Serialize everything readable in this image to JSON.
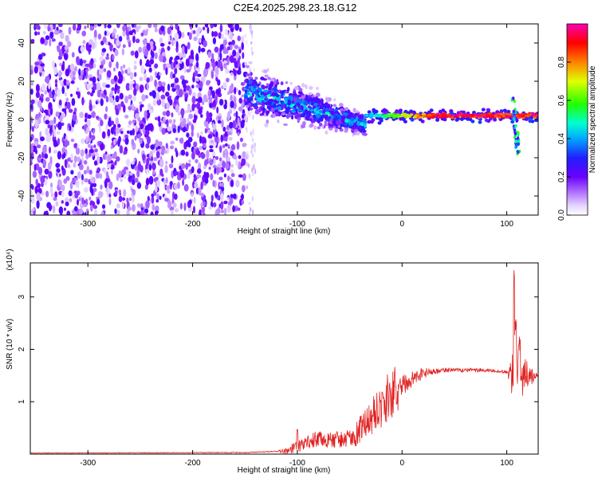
{
  "title": "C2E4.2025.298.23.18.G12",
  "chart_data": [
    {
      "type": "heatmap",
      "title": "C2E4.2025.298.23.18.G12",
      "xlabel": "Height of straight line (km)",
      "ylabel": "Frequency (Hz)",
      "xlim": [
        -355,
        130
      ],
      "ylim": [
        -50,
        50
      ],
      "x_ticks": [
        -300,
        -200,
        -100,
        0,
        100
      ],
      "x_tick_labels": [
        "-300",
        "-200",
        "-100",
        "0",
        "100"
      ],
      "y_ticks": [
        -40,
        -20,
        0,
        20,
        40
      ],
      "y_tick_labels": [
        "-40",
        "-20",
        "0",
        "20",
        "40"
      ],
      "colorbar": {
        "label": "Normalized spectral amplitude",
        "range": [
          0,
          1
        ],
        "ticks": [
          0.0,
          0.2,
          0.4,
          0.6,
          0.8
        ],
        "tick_labels": [
          "0.0",
          "0.2",
          "0.4",
          "0.6",
          "0.8"
        ],
        "colors": [
          "#ffffff",
          "#c8a8ff",
          "#8000ff",
          "#3030ff",
          "#00b0ff",
          "#00ffc0",
          "#40ff00",
          "#ffff00",
          "#ff8000",
          "#ff0000",
          "#ff00c0"
        ]
      },
      "regions": [
        {
          "description": "broadband noise",
          "x": [
            -355,
            -150
          ],
          "f": [
            -50,
            50
          ],
          "amplitude": 0.12
        },
        {
          "description": "noise fade",
          "x": [
            -150,
            -140
          ],
          "f": [
            -50,
            50
          ],
          "amplitude": 0.05
        },
        {
          "description": "scattered signal",
          "x": [
            -150,
            -35
          ],
          "f_center_start": 15,
          "f_center_end": -3,
          "spread": 10,
          "amplitude": 0.35
        },
        {
          "description": "coherent line",
          "x": [
            -35,
            130
          ],
          "f_center": 2,
          "amplitude": 0.95
        },
        {
          "description": "transient",
          "x": [
            103,
            113
          ],
          "f": [
            -18,
            12
          ],
          "amplitude": 0.4
        }
      ]
    },
    {
      "type": "line",
      "xlabel": "Height of straight line (km)",
      "ylabel": "SNR (10 * v/v)",
      "y_multiplier": "(x10⁴)",
      "xlim": [
        -355,
        130
      ],
      "ylim": [
        0,
        3.65
      ],
      "x_ticks": [
        -300,
        -200,
        -100,
        0,
        100
      ],
      "x_tick_labels": [
        "-300",
        "-200",
        "-100",
        "0",
        "100"
      ],
      "y_ticks": [
        1,
        2,
        3
      ],
      "y_tick_labels": [
        "1",
        "2",
        "3"
      ],
      "color": "#e02020",
      "envelope": {
        "x": [
          -355,
          -150,
          -110,
          -100,
          -80,
          -60,
          -45,
          -30,
          -20,
          -10,
          0,
          20,
          40,
          60,
          80,
          100,
          105,
          107,
          108,
          110,
          112,
          115,
          130
        ],
        "y": [
          0.02,
          0.03,
          0.06,
          0.15,
          0.3,
          0.25,
          0.35,
          0.7,
          1.0,
          1.1,
          1.3,
          1.55,
          1.6,
          1.6,
          1.6,
          1.57,
          1.5,
          1.8,
          2.9,
          1.6,
          1.9,
          1.5,
          1.48
        ]
      },
      "noise_amplitude": {
        "x": [
          -355,
          -120,
          -100,
          -80,
          -60,
          -40,
          -20,
          -5,
          0,
          30,
          100,
          105,
          115,
          130
        ],
        "y": [
          0.005,
          0.01,
          0.12,
          0.15,
          0.15,
          0.25,
          0.5,
          0.45,
          0.2,
          0.05,
          0.03,
          0.4,
          0.4,
          0.02
        ]
      },
      "spikes": [
        {
          "x": -100,
          "y": 0.5
        },
        {
          "x": -62,
          "y": 0.45
        },
        {
          "x": -7,
          "y": 1.7
        },
        {
          "x": 107,
          "y": 3.65
        },
        {
          "x": 112,
          "y": 2.3
        }
      ]
    }
  ]
}
